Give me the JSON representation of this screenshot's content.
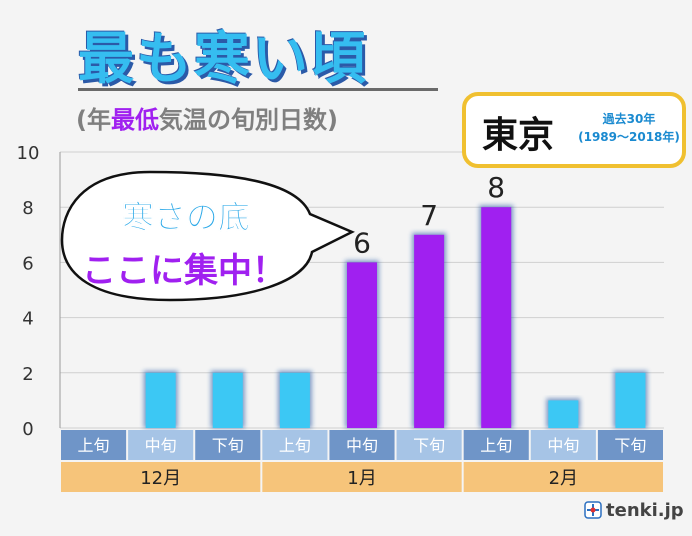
{
  "header": {
    "title": "最も寒い頃",
    "subtitle_prefix": "(年",
    "subtitle_highlight": "最低",
    "subtitle_suffix": "気温の旬別日数)"
  },
  "city_box": {
    "city": "東京",
    "period_line1": "過去30年",
    "period_line2": "(1989〜2018年)"
  },
  "callout": {
    "line1": "寒さの底",
    "line2": "ここに集中！"
  },
  "watermark": "tenki.jp",
  "colors": {
    "bar_normal": "#3cc8f4",
    "bar_highlight": "#a020f0",
    "label_row_dark": "#6f95c8",
    "label_row_light": "#a6c4e6",
    "month_row": "#f6c47a",
    "callout_line1": "#2aa8e8",
    "callout_line2": "#a020f0"
  },
  "chart_data": {
    "type": "bar",
    "title": "最も寒い頃",
    "subtitle": "(年最低気温の旬別日数)",
    "categories": [
      "上旬",
      "中旬",
      "下旬",
      "上旬",
      "中旬",
      "下旬",
      "上旬",
      "中旬",
      "下旬"
    ],
    "groups": [
      {
        "label": "12月",
        "count": 3
      },
      {
        "label": "1月",
        "count": 3
      },
      {
        "label": "2月",
        "count": 3
      }
    ],
    "values": [
      0,
      2,
      2,
      2,
      6,
      7,
      8,
      1,
      2
    ],
    "highlight": [
      false,
      false,
      false,
      false,
      true,
      true,
      true,
      false,
      false
    ],
    "data_labels": [
      "",
      "",
      "",
      "",
      "6",
      "7",
      "8",
      "",
      ""
    ],
    "yticks": [
      0,
      2,
      4,
      6,
      8,
      10
    ],
    "ylim": [
      0,
      10
    ],
    "grid": true,
    "xlabel": "",
    "ylabel": ""
  }
}
